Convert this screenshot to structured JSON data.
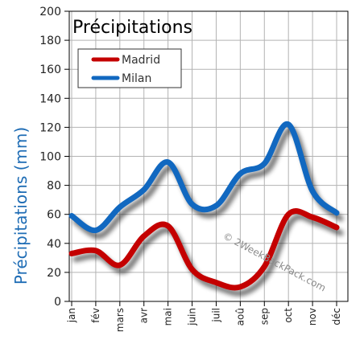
{
  "chart_data": {
    "type": "line",
    "title": "Précipitations",
    "ylabel": "Précipitations (mm)",
    "xlabel": "",
    "categories": [
      "jan",
      "fév",
      "mars",
      "avr",
      "mai",
      "juin",
      "juil",
      "aoû",
      "sep",
      "oct",
      "nov",
      "déc"
    ],
    "series": [
      {
        "name": "Madrid",
        "color": "#c40000",
        "values": [
          33,
          35,
          25,
          45,
          52,
          22,
          13,
          10,
          24,
          60,
          58,
          51
        ]
      },
      {
        "name": "Milan",
        "color": "#1168c0",
        "values": [
          59,
          49,
          65,
          77,
          96,
          67,
          66,
          88,
          95,
          122,
          76,
          61
        ]
      }
    ],
    "ylim": [
      0,
      200
    ],
    "yticks": [
      0,
      20,
      40,
      60,
      80,
      100,
      120,
      140,
      160,
      180,
      200
    ],
    "grid": true,
    "legend_position": "top-left"
  },
  "watermark": "© 2WeekBackPack.com"
}
